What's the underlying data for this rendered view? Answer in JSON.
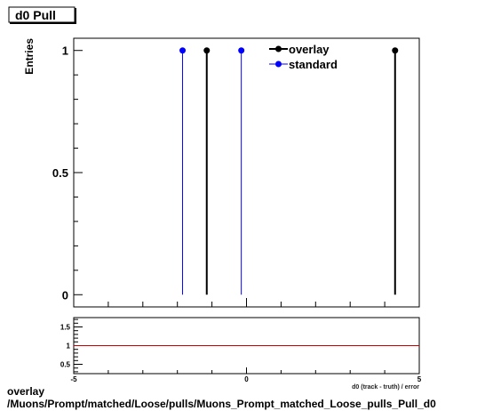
{
  "title": "d0 Pull",
  "footer": {
    "line1": "overlay",
    "line2": "/Muons/Prompt/matched/Loose/pulls/Muons_Prompt_matched_Loose_pulls_Pull_d0"
  },
  "colors": {
    "overlay": "#000000",
    "standard": "#0000ff",
    "ratio_line": "#cc0000"
  },
  "chart_data": [
    {
      "type": "scatter",
      "ylabel": "Entries",
      "xlim": [
        -5,
        5
      ],
      "ylim": [
        -0.05,
        1.05
      ],
      "y_ticks": [
        0,
        0.5,
        1
      ],
      "y_tick_labels": [
        "0",
        "0.5",
        "1"
      ],
      "legend_position": "top-right",
      "series": [
        {
          "name": "overlay",
          "x": [
            -1.15,
            4.3
          ],
          "y": [
            1,
            1
          ]
        },
        {
          "name": "standard",
          "x": [
            -1.85,
            -0.15
          ],
          "y": [
            1,
            1
          ]
        }
      ]
    },
    {
      "type": "line",
      "xlabel": "d0 (track - truth) / error",
      "xlim": [
        -5,
        5
      ],
      "ylim": [
        0.25,
        1.75
      ],
      "x_ticks": [
        -5,
        0,
        5
      ],
      "x_tick_labels": [
        "-5",
        "0",
        "5"
      ],
      "y_ticks": [
        0.5,
        1,
        1.5
      ],
      "y_tick_labels": [
        "0.5",
        "1",
        "1.5"
      ],
      "series": [
        {
          "x": [
            -5,
            5
          ],
          "y": [
            1,
            1
          ]
        }
      ]
    }
  ]
}
